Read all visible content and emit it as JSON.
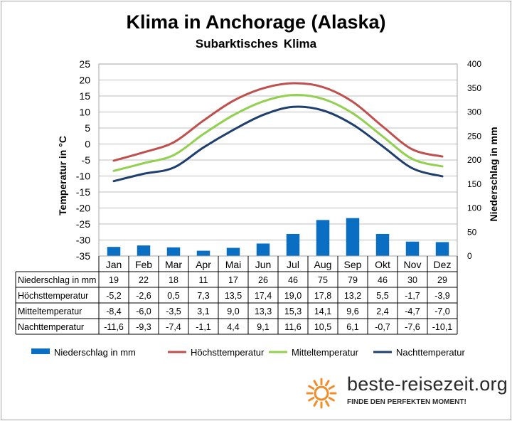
{
  "header": {
    "title": "Klima in Anchorage (Alaska)",
    "subtitle": "Subarktisches  Klima"
  },
  "chart_data": {
    "type": "bar+line",
    "title": "Klima in Anchorage (Alaska)",
    "subtitle": "Subarktisches  Klima",
    "categories": [
      "Jan",
      "Feb",
      "Mar",
      "Apr",
      "Mai",
      "Jun",
      "Jul",
      "Aug",
      "Sep",
      "Okt",
      "Nov",
      "Dez"
    ],
    "y_left": {
      "label": "Temperatur in °C",
      "min": -35,
      "max": 25,
      "step": 5
    },
    "y_right": {
      "label": "Niederschlag in mm",
      "min": 0,
      "max": 400,
      "step": 50
    },
    "series": [
      {
        "name": "Niederschlag in mm",
        "kind": "bar",
        "axis": "right",
        "color": "#0a6ec2",
        "values": [
          19,
          22,
          18,
          11,
          17,
          26,
          46,
          75,
          79,
          46,
          30,
          29
        ],
        "labels": [
          "19",
          "22",
          "18",
          "11",
          "17",
          "26",
          "46",
          "75",
          "79",
          "46",
          "30",
          "29"
        ]
      },
      {
        "name": "Höchsttemperatur",
        "kind": "line",
        "axis": "left",
        "color": "#c0504d",
        "values": [
          -5.2,
          -2.6,
          0.5,
          7.3,
          13.5,
          17.4,
          19.0,
          17.8,
          13.2,
          5.5,
          -1.7,
          -3.9
        ],
        "labels": [
          "-5,2",
          "-2,6",
          "0,5",
          "7,3",
          "13,5",
          "17,4",
          "19,0",
          "17,8",
          "13,2",
          "5,5",
          "-1,7",
          "-3,9"
        ]
      },
      {
        "name": "Mitteltemperatur",
        "kind": "line",
        "axis": "left",
        "color": "#92d050",
        "values": [
          -8.4,
          -6.0,
          -3.5,
          3.1,
          9.0,
          13.3,
          15.3,
          14.1,
          9.6,
          2.4,
          -4.7,
          -7.0
        ],
        "labels": [
          "-8,4",
          "-6,0",
          "-3,5",
          "3,1",
          "9,0",
          "13,3",
          "15,3",
          "14,1",
          "9,6",
          "2,4",
          "-4,7",
          "-7,0"
        ]
      },
      {
        "name": "Nachttemperatur",
        "kind": "line",
        "axis": "left",
        "color": "#1f3f6e",
        "values": [
          -11.6,
          -9.3,
          -7.4,
          -1.1,
          4.4,
          9.1,
          11.6,
          10.5,
          6.1,
          -0.7,
          -7.6,
          -10.1
        ],
        "labels": [
          "-11,6",
          "-9,3",
          "-7,4",
          "-1,1",
          "4,4",
          "9,1",
          "11,6",
          "10,5",
          "6,1",
          "-0,7",
          "-7,6",
          "-10,1"
        ]
      }
    ],
    "grid": true,
    "legend": "bottom",
    "data_table": true
  },
  "logo": {
    "text": "beste-reisezeit.org",
    "tagline": "FINDE DEN PERFEKTEN MOMENT!",
    "sun_color": "#f28c28"
  }
}
